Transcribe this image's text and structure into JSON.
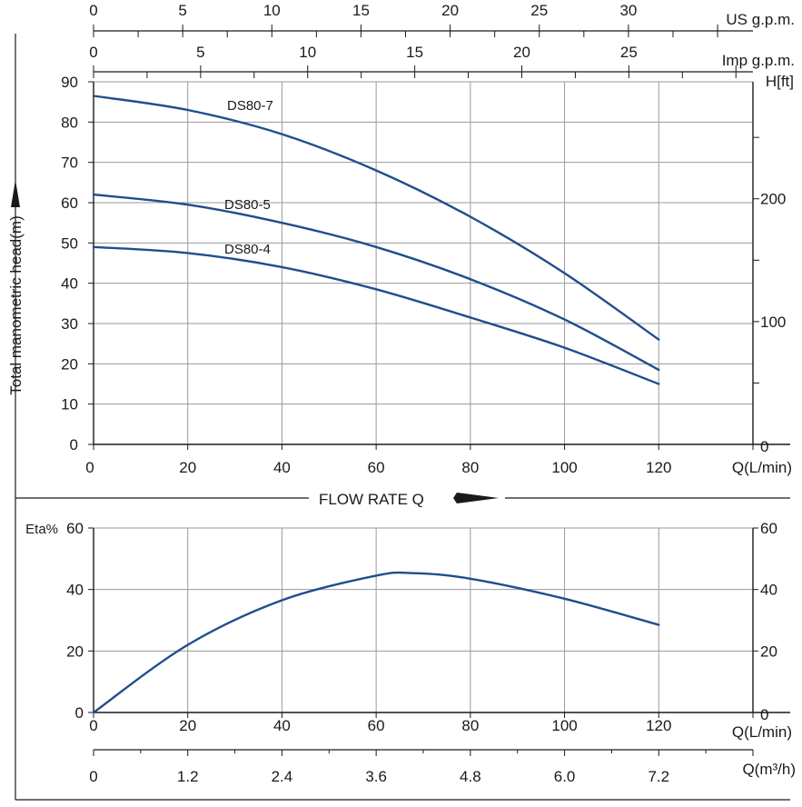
{
  "colors": {
    "curve": "#1f4e8c",
    "grid": "#9a9a9a",
    "axis": "#1a1a1a",
    "background": "#ffffff"
  },
  "labels": {
    "y_axis_title": "Total manometric head(m)",
    "flow_rate": "FLOW RATE Q",
    "q_lmin": "Q(L/min)",
    "h_ft": "H[ft]",
    "us_gpm": "US g.p.m.",
    "imp_gpm": "Imp g.p.m.",
    "eta": "Eta%",
    "q_m3h": "Q(m³/h)"
  },
  "chart_data": [
    {
      "type": "line",
      "name": "head",
      "xlabel": "Q(L/min)",
      "ylabel": "Total manometric head(m)",
      "xlim": [
        0,
        140
      ],
      "ylim": [
        0,
        90
      ],
      "x_ticks": [
        0,
        20,
        40,
        60,
        80,
        100,
        120
      ],
      "y_ticks": [
        0,
        10,
        20,
        30,
        40,
        50,
        60,
        70,
        80,
        90
      ],
      "right_axis": {
        "label": "H[ft]",
        "ticks": [
          0,
          100,
          200
        ]
      },
      "top_axes": [
        {
          "label": "US g.p.m.",
          "ticks": [
            0,
            5,
            10,
            15,
            20,
            25,
            30
          ]
        },
        {
          "label": "Imp g.p.m.",
          "ticks": [
            0,
            5,
            10,
            15,
            20,
            25
          ]
        }
      ],
      "grid": true,
      "series": [
        {
          "name": "DS80-7",
          "x": [
            0,
            20,
            40,
            60,
            80,
            100,
            120
          ],
          "y": [
            86.5,
            83,
            77,
            68,
            56.5,
            42.5,
            26
          ]
        },
        {
          "name": "DS80-5",
          "x": [
            0,
            20,
            40,
            60,
            80,
            100,
            120
          ],
          "y": [
            62,
            59.5,
            55,
            49,
            41,
            31,
            18.5
          ]
        },
        {
          "name": "DS80-4",
          "x": [
            0,
            20,
            40,
            60,
            80,
            100,
            120
          ],
          "y": [
            49,
            47.5,
            44,
            38.5,
            31.5,
            24,
            15
          ]
        }
      ]
    },
    {
      "type": "line",
      "name": "efficiency",
      "xlabel": "Q(L/min)",
      "ylabel": "Eta%",
      "xlim": [
        0,
        140
      ],
      "ylim": [
        0,
        60
      ],
      "x_ticks": [
        0,
        20,
        40,
        60,
        80,
        100,
        120
      ],
      "y_ticks": [
        0,
        20,
        40,
        60
      ],
      "right_axis": {
        "label": "",
        "ticks": [
          0,
          20,
          40,
          60
        ]
      },
      "bottom_axis": {
        "label": "Q(m³/h)",
        "ticks": [
          "0",
          "1.2",
          "2.4",
          "3.6",
          "4.8",
          "6.0",
          "7.2"
        ]
      },
      "grid": true,
      "series": [
        {
          "name": "",
          "x": [
            0,
            20,
            40,
            60,
            68,
            80,
            100,
            120
          ],
          "y": [
            0,
            22,
            36.5,
            44.5,
            45.3,
            43.5,
            37,
            28.5
          ]
        }
      ]
    }
  ]
}
